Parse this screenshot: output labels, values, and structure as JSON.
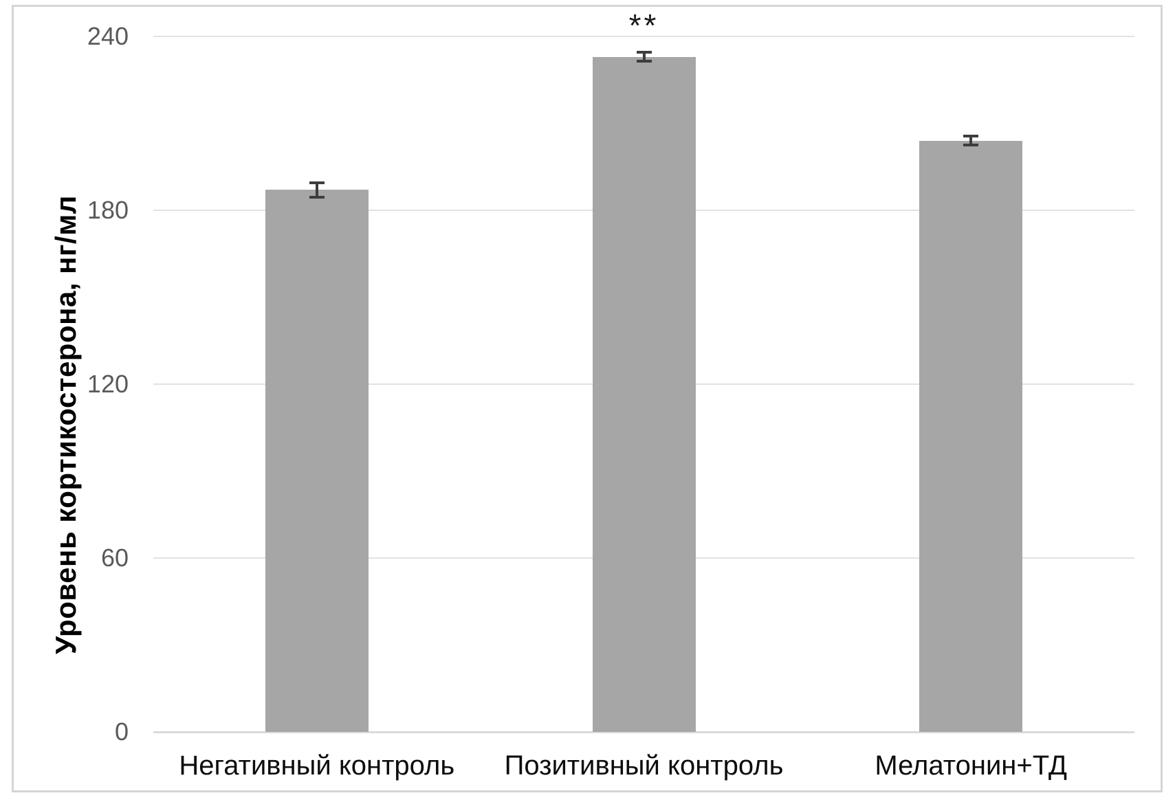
{
  "chart_data": {
    "type": "bar",
    "title": "",
    "xlabel": "",
    "ylabel": "Уровень кортикостерона, нг/мл",
    "categories": [
      "Негативный контроль",
      "Позитивный контроль",
      "Мелатонин+ТД"
    ],
    "values": [
      187,
      233,
      204
    ],
    "error_bars": [
      3,
      2,
      2
    ],
    "annotations": [
      {
        "category_index": 1,
        "text": "**",
        "meaning": "significance-marker"
      }
    ],
    "ylim": [
      0,
      240
    ],
    "yticks": [
      0,
      60,
      120,
      180,
      240
    ],
    "grid": true,
    "legend": false,
    "colors": {
      "bar_fill": "#a6a6a6",
      "error_bar": "#3d3d3d",
      "gridline": "#e2e2e2",
      "axis_line": "#dadada",
      "tick_label": "#595959",
      "category_label": "#0d0d0d",
      "ylabel_text": "#000000",
      "frame_border": "#d5d5d5",
      "background": "#ffffff"
    }
  }
}
